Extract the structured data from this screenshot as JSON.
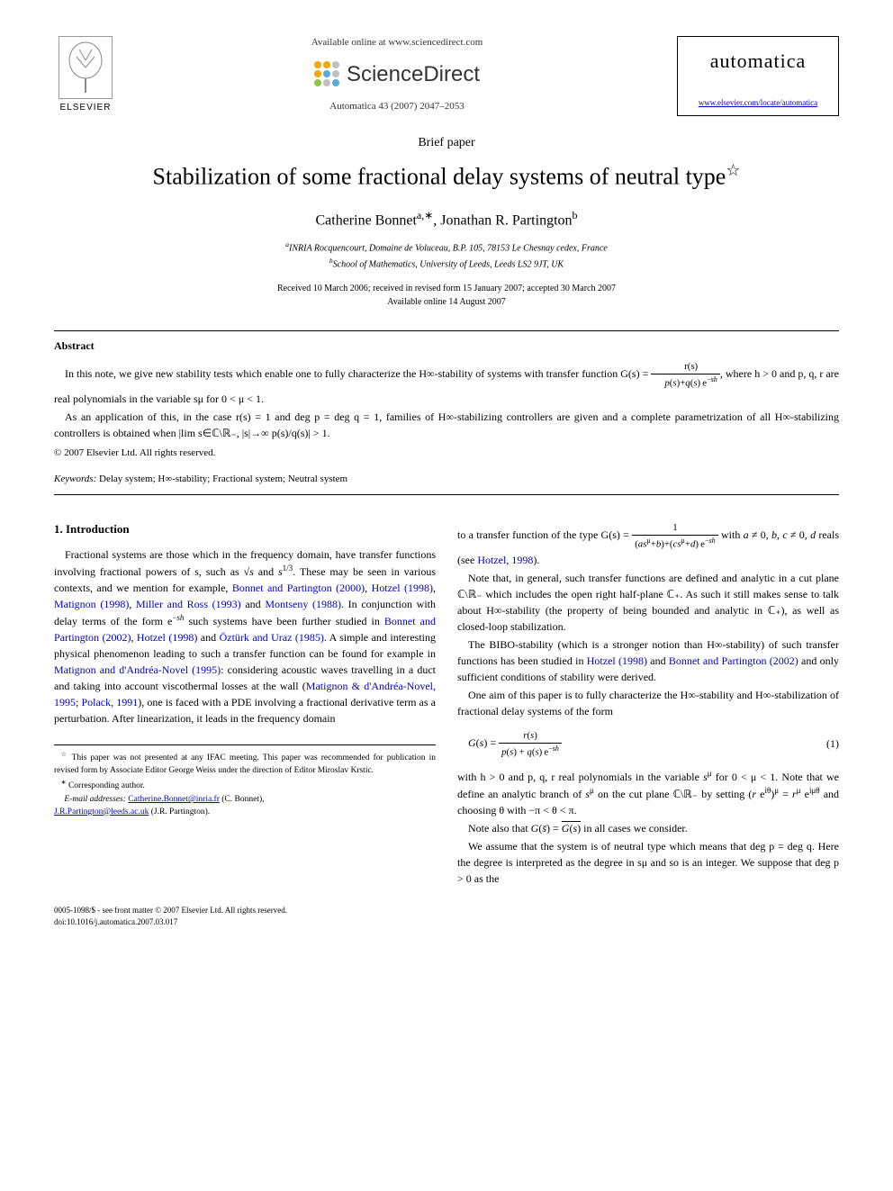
{
  "header": {
    "elsevier_label": "ELSEVIER",
    "available_text": "Available online at www.sciencedirect.com",
    "sciencedirect_label": "ScienceDirect",
    "journal_ref": "Automatica 43 (2007) 2047–2053",
    "automatica_title": "automatica",
    "automatica_link": "www.elsevier.com/locate/automatica",
    "sd_dot_colors": [
      "#f7a600",
      "#f7a600",
      "#c0c0c0",
      "#f7a600",
      "#5aa9d6",
      "#c0c0c0",
      "#8bc63e",
      "#c0c0c0",
      "#5aa9d6"
    ]
  },
  "paper": {
    "type": "Brief paper",
    "title": "Stabilization of some fractional delay systems of neutral type",
    "authors_html": "Catherine Bonnet<sup>a,∗</sup>, Jonathan R. Partington<sup>b</sup>",
    "affiliations": {
      "a": "INRIA Rocquencourt, Domaine de Voluceau, B.P. 105, 78153 Le Chesnay cedex, France",
      "b": "School of Mathematics, University of Leeds, Leeds LS2 9JT, UK"
    },
    "dates": {
      "received": "Received 10 March 2006; received in revised form 15 January 2007; accepted 30 March 2007",
      "online": "Available online 14 August 2007"
    }
  },
  "abstract": {
    "heading": "Abstract",
    "p1_pre": "In this note, we give new stability tests which enable one to fully characterize the H∞-stability of systems with transfer function G(s) = ",
    "p1_frac_num": "r(s)",
    "p1_frac_den": "p(s)+q(s) e−sh",
    "p1_post": ", where h > 0 and p, q, r are real polynomials in the variable sμ for 0 < μ < 1.",
    "p2": "As an application of this, in the case r(s) = 1 and deg p = deg q = 1, families of H∞-stabilizing controllers are given and a complete parametrization of all H∞-stabilizing controllers is obtained when |lim s∈ℂ\\ℝ₋, |s|→∞  p(s)/q(s)| > 1.",
    "copyright": "© 2007 Elsevier Ltd. All rights reserved.",
    "keywords_label": "Keywords:",
    "keywords": "Delay system; H∞-stability; Fractional system; Neutral system"
  },
  "body": {
    "section1_heading": "1. Introduction",
    "col1_p1": "Fractional systems are those which in the frequency domain, have transfer functions involving fractional powers of s, such as √s and s1/3. These may be seen in various contexts, and we mention for example, Bonnet and Partington (2000), Hotzel (1998), Matignon (1998), Miller and Ross (1993) and Montseny (1988). In conjunction with delay terms of the form e−sh such systems have been further studied in Bonnet and Partington (2002), Hotzel (1998) and Öztürk and Uraz (1985). A simple and interesting physical phenomenon leading to such a transfer function can be found for example in Matignon and d'Andréa-Novel (1995): considering acoustic waves travelling in a duct and taking into account viscothermal losses at the wall (Matignon & d'Andréa-Novel, 1995; Polack, 1991), one is faced with a PDE involving a fractional derivative term as a perturbation. After linearization, it leads in the frequency domain",
    "col2_p1_pre": "to a transfer function of the type G(s) = ",
    "col2_p1_frac_num": "1",
    "col2_p1_frac_den": "(asμ+b)+(csμ+d) e−sh",
    "col2_p1_post": " with a ≠ 0, b, c ≠ 0, d reals (see Hotzel, 1998).",
    "col2_p2": "Note that, in general, such transfer functions are defined and analytic in a cut plane ℂ\\ℝ₋ which includes the open right half-plane ℂ₊. As such it still makes sense to talk about H∞-stability (the property of being bounded and analytic in ℂ₊), as well as closed-loop stabilization.",
    "col2_p3": "The BIBO-stability (which is a stronger notion than H∞-stability) of such transfer functions has been studied in Hotzel (1998) and Bonnet and Partington (2002) and only sufficient conditions of stability were derived.",
    "col2_p4": "One aim of this paper is to fully characterize the H∞-stability and H∞-stabilization of fractional delay systems of the form",
    "eq1_lhs": "G(s) = ",
    "eq1_frac_num": "r(s)",
    "eq1_frac_den": "p(s) + q(s) e−sh",
    "eq1_num": "(1)",
    "col2_p5": "with h > 0 and p, q, r real polynomials in the variable sμ for 0 < μ < 1. Note that we define an analytic branch of sμ on the cut plane ℂ\\ℝ₋ by setting (r eiθ)μ = rμ eiμθ and choosing θ with −π < θ < π.",
    "col2_p6": "Note also that G(s̄) = G(s)̄ in all cases we consider.",
    "col2_p7": "We assume that the system is of neutral type which means that deg p = deg q. Here the degree is interpreted as the degree in sμ and so is an integer. We suppose that deg p > 0 as the"
  },
  "footnotes": {
    "note_star": "This paper was not presented at any IFAC meeting. This paper was recommended for publication in revised form by Associate Editor George Weiss under the direction of Editor Miroslav Krstic.",
    "note_corresponding": "Corresponding author.",
    "email_label": "E-mail addresses:",
    "email1": "Catherine.Bonnet@inria.fr",
    "email1_who": "(C. Bonnet),",
    "email2": "J.R.Partington@leeds.ac.uk",
    "email2_who": "(J.R. Partington)."
  },
  "footer": {
    "line1": "0005-1098/$ - see front matter © 2007 Elsevier Ltd. All rights reserved.",
    "line2": "doi:10.1016/j.automatica.2007.03.017"
  },
  "colors": {
    "link": "#0000cc",
    "text": "#000000",
    "bg": "#ffffff"
  }
}
